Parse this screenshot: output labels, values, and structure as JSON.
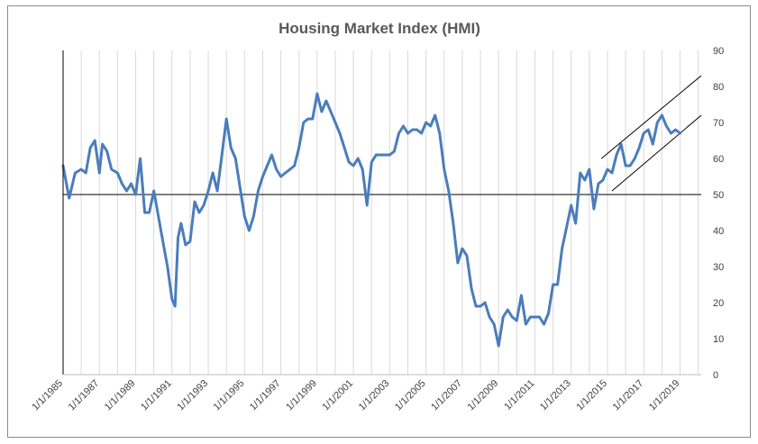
{
  "chart_data": {
    "type": "line",
    "title": "Housing Market Index (HMI)",
    "xlabel": "",
    "ylabel": "",
    "ylim": [
      0,
      90
    ],
    "y_ticks": [
      "0",
      "10",
      "20",
      "30",
      "40",
      "50",
      "60",
      "70",
      "80",
      "90"
    ],
    "x_range": [
      "1/1/1985",
      "3/1/2020"
    ],
    "x_ticks": [
      "1/1/1985",
      "1/1/1987",
      "1/1/1989",
      "1/1/1991",
      "1/1/1993",
      "1/1/1995",
      "1/1/1997",
      "1/1/1999",
      "1/1/2001",
      "1/1/2003",
      "1/1/2005",
      "1/1/2007",
      "1/1/2009",
      "1/1/2011",
      "1/1/2013",
      "1/1/2015",
      "1/1/2017",
      "1/1/2019"
    ],
    "y_axis_position": "right",
    "vertical_gridlines": true,
    "horizontal_gridlines": false,
    "legend": "none",
    "series_color": "#4a7dbb",
    "annotation_color": "#000000",
    "series": [
      {
        "points": [
          [
            "1/1/1985",
            58
          ],
          [
            "5/1/1985",
            49
          ],
          [
            "9/1/1985",
            56
          ],
          [
            "1/1/1986",
            57
          ],
          [
            "4/1/1986",
            56
          ],
          [
            "7/1/1986",
            63
          ],
          [
            "10/1/1986",
            65
          ],
          [
            "1/1/1987",
            56
          ],
          [
            "3/1/1987",
            64
          ],
          [
            "6/1/1987",
            62
          ],
          [
            "9/1/1987",
            57
          ],
          [
            "1/1/1988",
            56
          ],
          [
            "4/1/1988",
            53
          ],
          [
            "7/1/1988",
            51
          ],
          [
            "10/1/1988",
            53
          ],
          [
            "1/1/1989",
            50
          ],
          [
            "4/1/1989",
            60
          ],
          [
            "7/1/1989",
            45
          ],
          [
            "10/1/1989",
            45
          ],
          [
            "1/1/1990",
            51
          ],
          [
            "4/1/1990",
            44
          ],
          [
            "7/1/1990",
            37
          ],
          [
            "10/1/1990",
            30
          ],
          [
            "1/1/1991",
            21
          ],
          [
            "3/1/1991",
            19
          ],
          [
            "5/1/1991",
            38
          ],
          [
            "7/1/1991",
            42
          ],
          [
            "10/1/1991",
            36
          ],
          [
            "1/1/1992",
            37
          ],
          [
            "4/1/1992",
            48
          ],
          [
            "7/1/1992",
            45
          ],
          [
            "10/1/1992",
            47
          ],
          [
            "1/1/1993",
            51
          ],
          [
            "4/1/1993",
            56
          ],
          [
            "7/1/1993",
            51
          ],
          [
            "10/1/1993",
            61
          ],
          [
            "1/1/1994",
            71
          ],
          [
            "4/1/1994",
            63
          ],
          [
            "7/1/1994",
            60
          ],
          [
            "10/1/1994",
            52
          ],
          [
            "1/1/1995",
            44
          ],
          [
            "4/1/1995",
            40
          ],
          [
            "7/1/1995",
            44
          ],
          [
            "10/1/1995",
            51
          ],
          [
            "1/1/1996",
            55
          ],
          [
            "4/1/1996",
            58
          ],
          [
            "7/1/1996",
            61
          ],
          [
            "10/1/1996",
            57
          ],
          [
            "1/1/1997",
            55
          ],
          [
            "4/1/1997",
            56
          ],
          [
            "7/1/1997",
            57
          ],
          [
            "10/1/1997",
            58
          ],
          [
            "1/1/1998",
            63
          ],
          [
            "4/1/1998",
            70
          ],
          [
            "7/1/1998",
            71
          ],
          [
            "10/1/1998",
            71
          ],
          [
            "1/1/1999",
            78
          ],
          [
            "4/1/1999",
            73
          ],
          [
            "7/1/1999",
            76
          ],
          [
            "10/1/1999",
            73
          ],
          [
            "1/1/2000",
            70
          ],
          [
            "4/1/2000",
            67
          ],
          [
            "7/1/2000",
            63
          ],
          [
            "10/1/2000",
            59
          ],
          [
            "1/1/2001",
            58
          ],
          [
            "4/1/2001",
            60
          ],
          [
            "7/1/2001",
            57
          ],
          [
            "10/1/2001",
            47
          ],
          [
            "1/1/2002",
            59
          ],
          [
            "4/1/2002",
            61
          ],
          [
            "7/1/2002",
            61
          ],
          [
            "10/1/2002",
            61
          ],
          [
            "1/1/2003",
            61
          ],
          [
            "4/1/2003",
            62
          ],
          [
            "7/1/2003",
            67
          ],
          [
            "10/1/2003",
            69
          ],
          [
            "1/1/2004",
            67
          ],
          [
            "4/1/2004",
            68
          ],
          [
            "7/1/2004",
            68
          ],
          [
            "10/1/2004",
            67
          ],
          [
            "1/1/2005",
            70
          ],
          [
            "4/1/2005",
            69
          ],
          [
            "7/1/2005",
            72
          ],
          [
            "10/1/2005",
            67
          ],
          [
            "1/1/2006",
            57
          ],
          [
            "4/1/2006",
            51
          ],
          [
            "7/1/2006",
            42
          ],
          [
            "10/1/2006",
            31
          ],
          [
            "1/1/2007",
            35
          ],
          [
            "4/1/2007",
            33
          ],
          [
            "7/1/2007",
            24
          ],
          [
            "10/1/2007",
            19
          ],
          [
            "1/1/2008",
            19
          ],
          [
            "4/1/2008",
            20
          ],
          [
            "7/1/2008",
            16
          ],
          [
            "10/1/2008",
            14
          ],
          [
            "1/1/2009",
            8
          ],
          [
            "4/1/2009",
            16
          ],
          [
            "7/1/2009",
            18
          ],
          [
            "10/1/2009",
            16
          ],
          [
            "1/1/2010",
            15
          ],
          [
            "4/1/2010",
            22
          ],
          [
            "7/1/2010",
            14
          ],
          [
            "10/1/2010",
            16
          ],
          [
            "1/1/2011",
            16
          ],
          [
            "4/1/2011",
            16
          ],
          [
            "7/1/2011",
            14
          ],
          [
            "10/1/2011",
            17
          ],
          [
            "1/1/2012",
            25
          ],
          [
            "4/1/2012",
            25
          ],
          [
            "7/1/2012",
            35
          ],
          [
            "10/1/2012",
            41
          ],
          [
            "1/1/2013",
            47
          ],
          [
            "4/1/2013",
            42
          ],
          [
            "7/1/2013",
            56
          ],
          [
            "10/1/2013",
            54
          ],
          [
            "1/1/2014",
            57
          ],
          [
            "4/1/2014",
            46
          ],
          [
            "7/1/2014",
            53
          ],
          [
            "10/1/2014",
            54
          ],
          [
            "1/1/2015",
            57
          ],
          [
            "4/1/2015",
            56
          ],
          [
            "7/1/2015",
            61
          ],
          [
            "10/1/2015",
            64
          ],
          [
            "1/1/2016",
            58
          ],
          [
            "4/1/2016",
            58
          ],
          [
            "7/1/2016",
            60
          ],
          [
            "10/1/2016",
            63
          ],
          [
            "1/1/2017",
            67
          ],
          [
            "4/1/2017",
            68
          ],
          [
            "7/1/2017",
            64
          ],
          [
            "10/1/2017",
            70
          ],
          [
            "1/1/2018",
            72
          ],
          [
            "4/1/2018",
            69
          ],
          [
            "7/1/2018",
            67
          ],
          [
            "10/1/2018",
            68
          ],
          [
            "1/1/2019",
            67
          ]
        ]
      }
    ],
    "annotations": [
      {
        "type": "horizontal_line",
        "y": 50
      },
      {
        "type": "trend_line",
        "from": [
          "9/1/2014",
          60
        ],
        "to": [
          "3/1/2020",
          83
        ]
      },
      {
        "type": "trend_line",
        "from": [
          "4/1/2015",
          51
        ],
        "to": [
          "3/1/2020",
          72
        ]
      }
    ]
  }
}
